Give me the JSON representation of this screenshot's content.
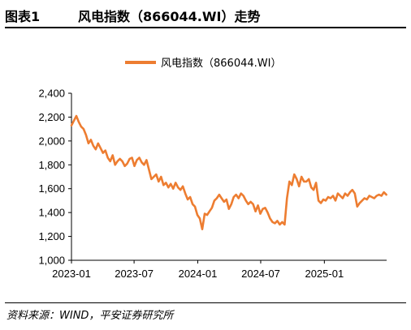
{
  "header": {
    "figure_label": "图表1",
    "title": "风电指数（866044.WI）走势"
  },
  "source": "资料来源：WIND，平安证券研究所",
  "chart_data": {
    "type": "line",
    "title": "风电指数（866044.WI）走势",
    "xlabel": "",
    "ylabel": "",
    "legend": {
      "position": "top-center"
    },
    "grid": false,
    "ylim": [
      1000,
      2400
    ],
    "yticks": [
      1000,
      1200,
      1400,
      1600,
      1800,
      2000,
      2200,
      2400
    ],
    "ytick_labels": [
      "1,000",
      "1,200",
      "1,400",
      "1,600",
      "1,800",
      "2,000",
      "2,200",
      "2,400"
    ],
    "xlim": [
      "2023-01-01",
      "2025-06-30"
    ],
    "xtick_labels": [
      "2023-01",
      "2023-07",
      "2024-01",
      "2024-07",
      "2025-01"
    ],
    "xtick_dates": [
      "2023-01-01",
      "2023-07-01",
      "2024-01-01",
      "2024-07-01",
      "2025-01-01"
    ],
    "colors": {
      "line": "#ED7D31"
    },
    "series": [
      {
        "name": "风电指数（866044.WI）",
        "x": [
          "2023-01-01",
          "2023-01-08",
          "2023-01-15",
          "2023-01-22",
          "2023-01-29",
          "2023-02-05",
          "2023-02-12",
          "2023-02-19",
          "2023-02-26",
          "2023-03-05",
          "2023-03-12",
          "2023-03-19",
          "2023-03-26",
          "2023-04-02",
          "2023-04-09",
          "2023-04-16",
          "2023-04-23",
          "2023-04-30",
          "2023-05-07",
          "2023-05-14",
          "2023-05-21",
          "2023-05-28",
          "2023-06-04",
          "2023-06-11",
          "2023-06-18",
          "2023-06-25",
          "2023-07-02",
          "2023-07-09",
          "2023-07-16",
          "2023-07-23",
          "2023-07-30",
          "2023-08-06",
          "2023-08-13",
          "2023-08-20",
          "2023-08-27",
          "2023-09-03",
          "2023-09-10",
          "2023-09-17",
          "2023-09-24",
          "2023-10-01",
          "2023-10-08",
          "2023-10-15",
          "2023-10-22",
          "2023-10-29",
          "2023-11-05",
          "2023-11-12",
          "2023-11-19",
          "2023-11-26",
          "2023-12-03",
          "2023-12-10",
          "2023-12-17",
          "2023-12-24",
          "2023-12-31",
          "2024-01-07",
          "2024-01-14",
          "2024-01-21",
          "2024-01-28",
          "2024-02-04",
          "2024-02-11",
          "2024-02-18",
          "2024-02-25",
          "2024-03-03",
          "2024-03-10",
          "2024-03-17",
          "2024-03-24",
          "2024-03-31",
          "2024-04-07",
          "2024-04-14",
          "2024-04-21",
          "2024-04-28",
          "2024-05-05",
          "2024-05-12",
          "2024-05-19",
          "2024-05-26",
          "2024-06-02",
          "2024-06-09",
          "2024-06-16",
          "2024-06-23",
          "2024-06-30",
          "2024-07-07",
          "2024-07-14",
          "2024-07-21",
          "2024-07-28",
          "2024-08-04",
          "2024-08-11",
          "2024-08-18",
          "2024-08-25",
          "2024-09-01",
          "2024-09-08",
          "2024-09-15",
          "2024-09-22",
          "2024-09-29",
          "2024-10-06",
          "2024-10-13",
          "2024-10-20",
          "2024-10-27",
          "2024-11-03",
          "2024-11-10",
          "2024-11-17",
          "2024-11-24",
          "2024-12-01",
          "2024-12-08",
          "2024-12-15",
          "2024-12-22",
          "2024-12-29",
          "2025-01-05",
          "2025-01-12",
          "2025-01-19",
          "2025-01-26",
          "2025-02-02",
          "2025-02-09",
          "2025-02-16",
          "2025-02-23",
          "2025-03-02",
          "2025-03-09",
          "2025-03-16",
          "2025-03-23",
          "2025-03-30",
          "2025-04-06",
          "2025-04-13",
          "2025-04-20",
          "2025-04-27",
          "2025-05-04",
          "2025-05-11",
          "2025-05-18",
          "2025-05-25",
          "2025-06-01",
          "2025-06-08",
          "2025-06-15",
          "2025-06-22",
          "2025-06-29"
        ],
        "y": [
          2130,
          2170,
          2210,
          2160,
          2120,
          2100,
          2050,
          1980,
          2010,
          1960,
          1930,
          1980,
          1940,
          1900,
          1920,
          1860,
          1830,
          1880,
          1800,
          1830,
          1850,
          1830,
          1790,
          1810,
          1850,
          1860,
          1790,
          1840,
          1860,
          1820,
          1800,
          1840,
          1760,
          1680,
          1700,
          1720,
          1660,
          1700,
          1630,
          1650,
          1610,
          1640,
          1600,
          1650,
          1610,
          1590,
          1620,
          1560,
          1510,
          1530,
          1470,
          1450,
          1380,
          1350,
          1260,
          1390,
          1380,
          1410,
          1440,
          1500,
          1520,
          1550,
          1520,
          1490,
          1510,
          1430,
          1470,
          1530,
          1550,
          1520,
          1560,
          1540,
          1500,
          1470,
          1490,
          1470,
          1410,
          1460,
          1390,
          1430,
          1440,
          1400,
          1350,
          1320,
          1310,
          1330,
          1300,
          1320,
          1300,
          1520,
          1660,
          1630,
          1720,
          1680,
          1620,
          1700,
          1660,
          1660,
          1680,
          1610,
          1590,
          1650,
          1500,
          1480,
          1510,
          1500,
          1530,
          1520,
          1540,
          1500,
          1560,
          1540,
          1520,
          1560,
          1540,
          1570,
          1590,
          1560,
          1450,
          1480,
          1500,
          1520,
          1510,
          1540,
          1530,
          1520,
          1540,
          1550,
          1540,
          1570,
          1550
        ]
      }
    ]
  }
}
